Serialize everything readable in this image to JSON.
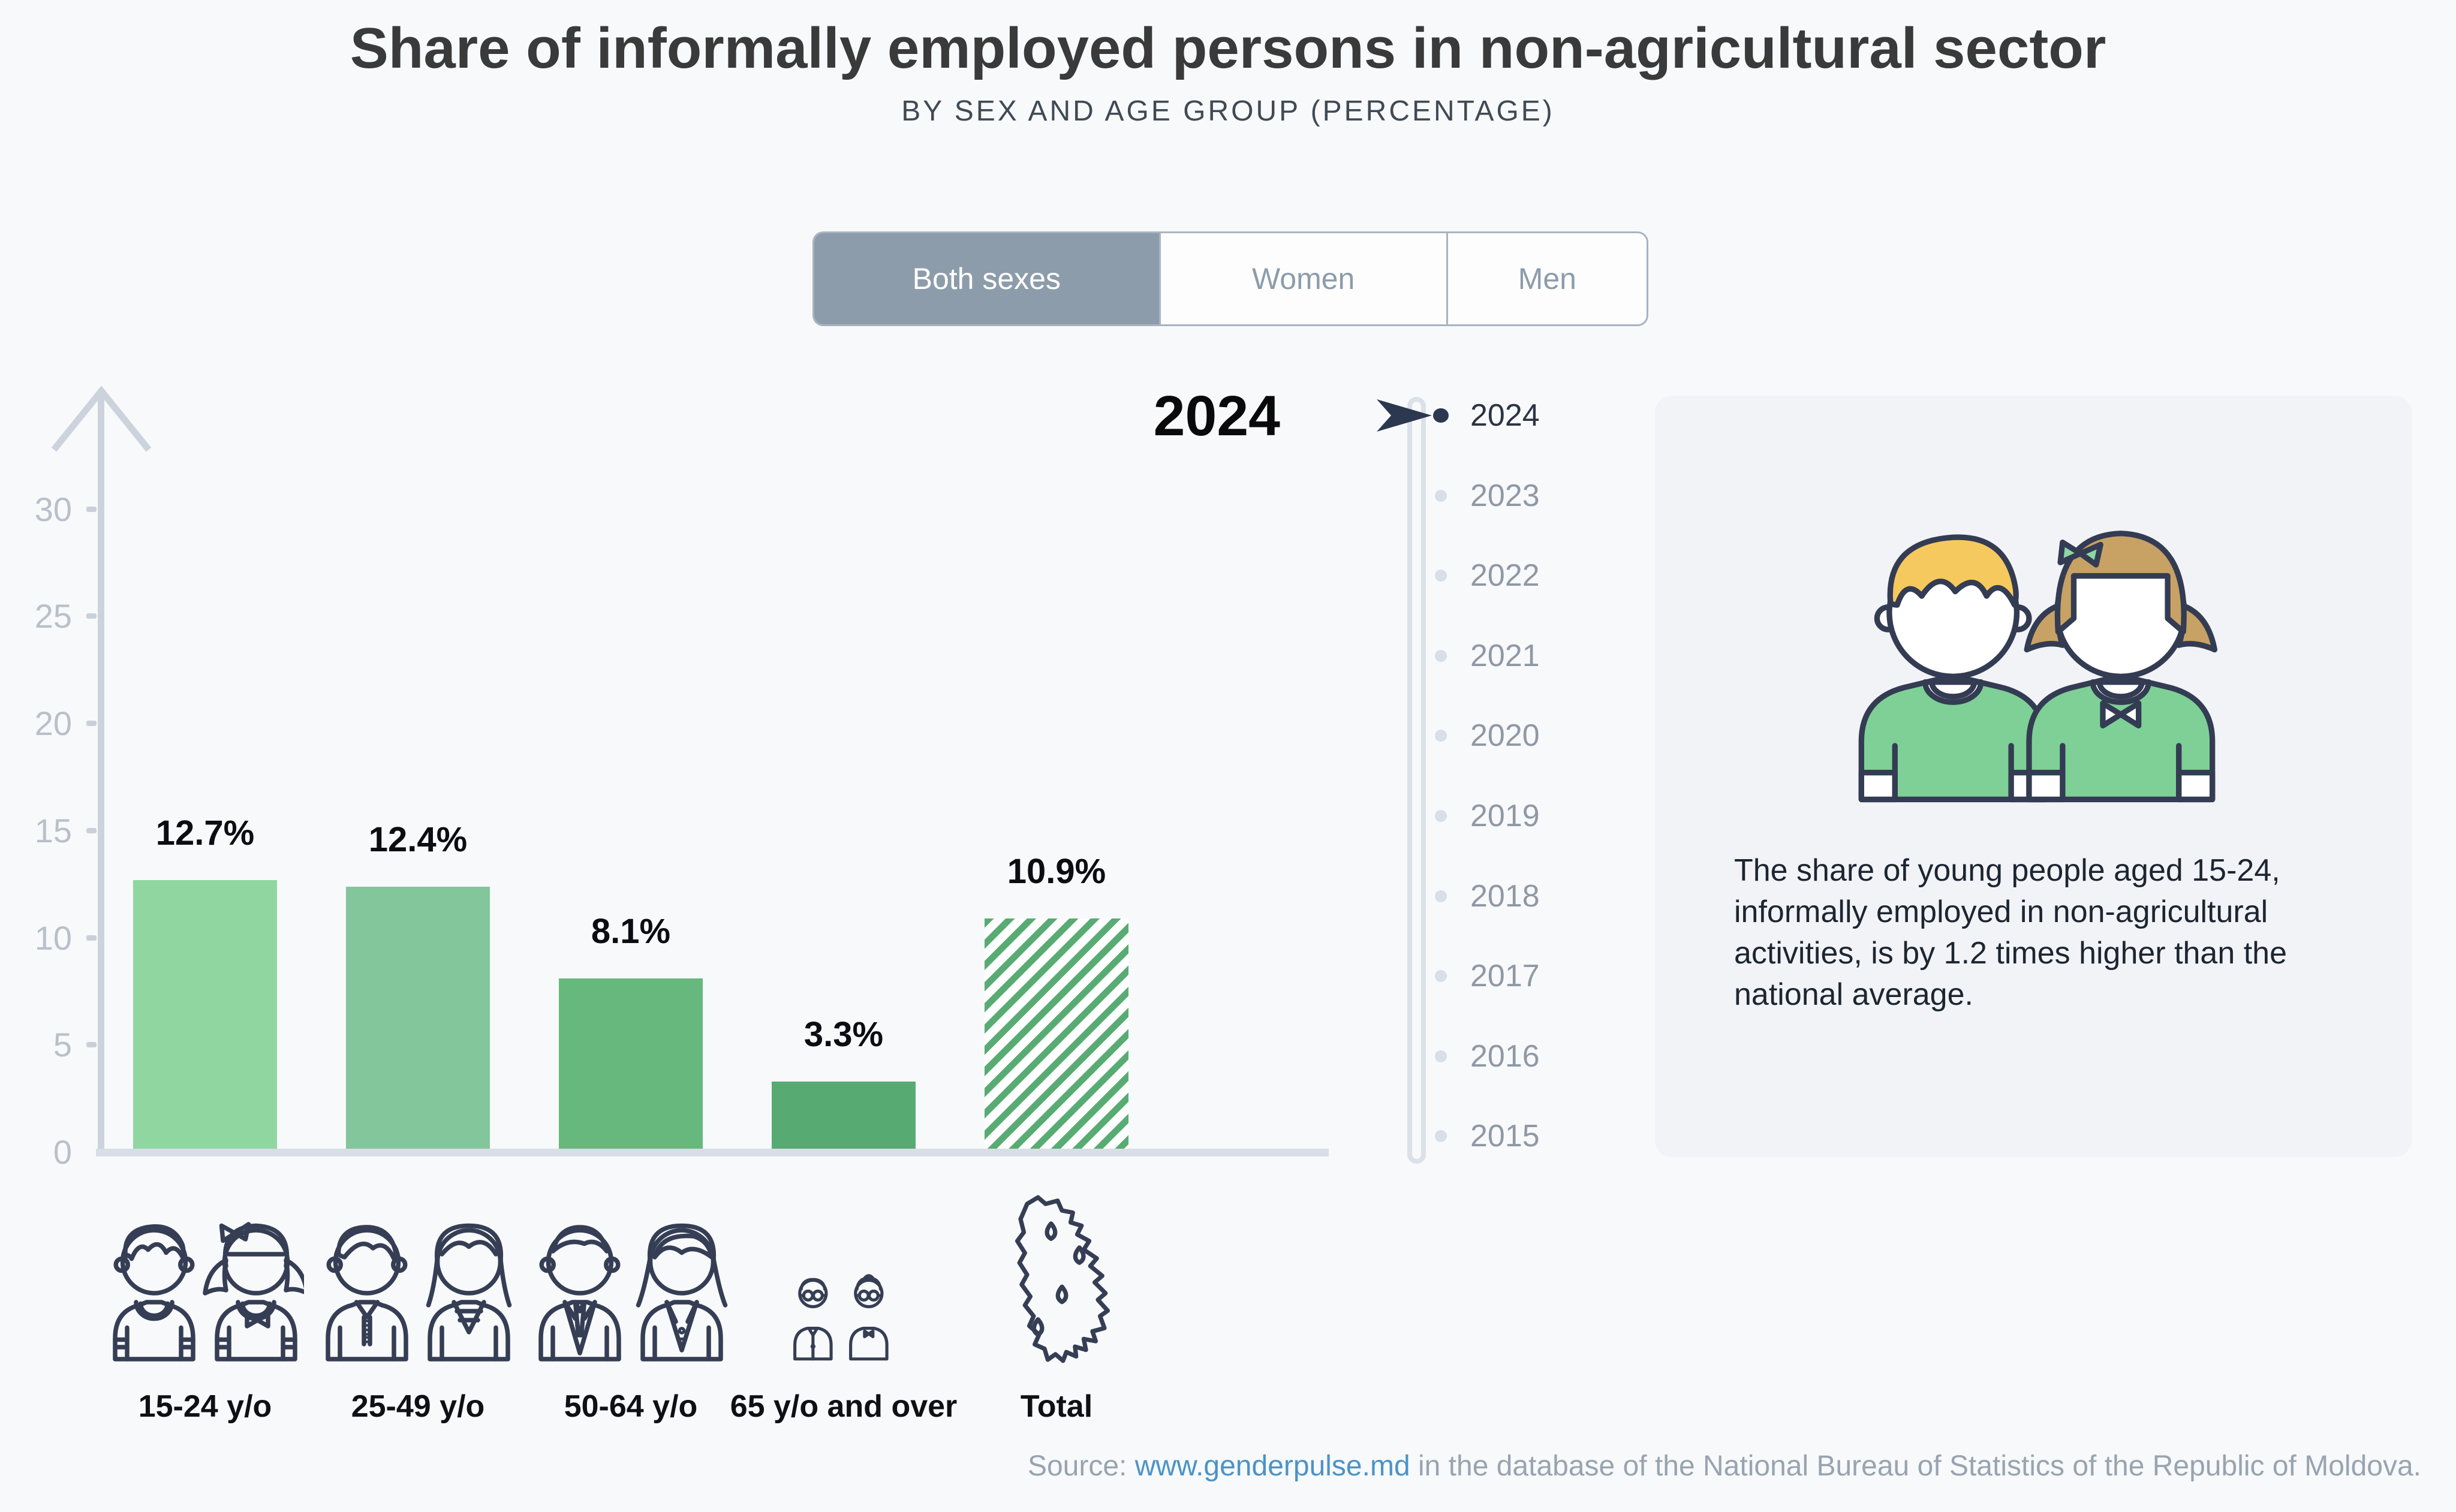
{
  "header": {
    "title": "Share of informally employed persons in non-agricultural sector",
    "subtitle": "BY SEX AND AGE GROUP (PERCENTAGE)"
  },
  "tabs": {
    "items": [
      {
        "label": "Both sexes",
        "selected": true
      },
      {
        "label": "Women",
        "selected": false
      },
      {
        "label": "Men",
        "selected": false
      }
    ]
  },
  "year_display": "2024",
  "timeline": {
    "selected": "2024",
    "years": [
      "2024",
      "2023",
      "2022",
      "2021",
      "2020",
      "2019",
      "2018",
      "2017",
      "2016",
      "2015"
    ]
  },
  "chart_data": {
    "type": "bar",
    "title": "Share of informally employed persons in non-agricultural sector, both sexes, 2024",
    "categories": [
      "15-24 y/o",
      "25-49 y/o",
      "50-64 y/o",
      "65 y/o and over",
      "Total"
    ],
    "values": [
      12.7,
      12.4,
      8.1,
      3.3,
      10.9
    ],
    "value_labels": [
      "12.7%",
      "12.4%",
      "8.1%",
      "3.3%",
      "10.9%"
    ],
    "unit": "%",
    "yticks": [
      0,
      5,
      10,
      15,
      20,
      25,
      30
    ],
    "ylim": [
      0,
      33
    ],
    "grid": false,
    "legend": "none",
    "bar_colors": [
      "#90d6a1",
      "#84c69b",
      "#66b87d",
      "#57ab72",
      "#58ac73"
    ],
    "total_bar_style": "diagonal-hatch"
  },
  "info_box": {
    "text": "The share of young people aged 15-24, informally employed in non-agricultural activities, is by 1.2 times higher than the national average."
  },
  "source": {
    "prefix": "Source: ",
    "link_text": "www.genderpulse.md",
    "suffix": " in the database of the National Bureau of Statistics of the Republic of Moldova."
  },
  "colors": {
    "page_bg": "#f8f9fb",
    "info_box_bg": "#f1f3f7",
    "tab_selected_bg": "#8c9caa",
    "axis_gray": "#ccd3dc",
    "link_blue": "#4b93c8",
    "outline_navy": "#353e54",
    "timeline_selected": "#2c3850",
    "hatch_green": "#58ac73"
  }
}
